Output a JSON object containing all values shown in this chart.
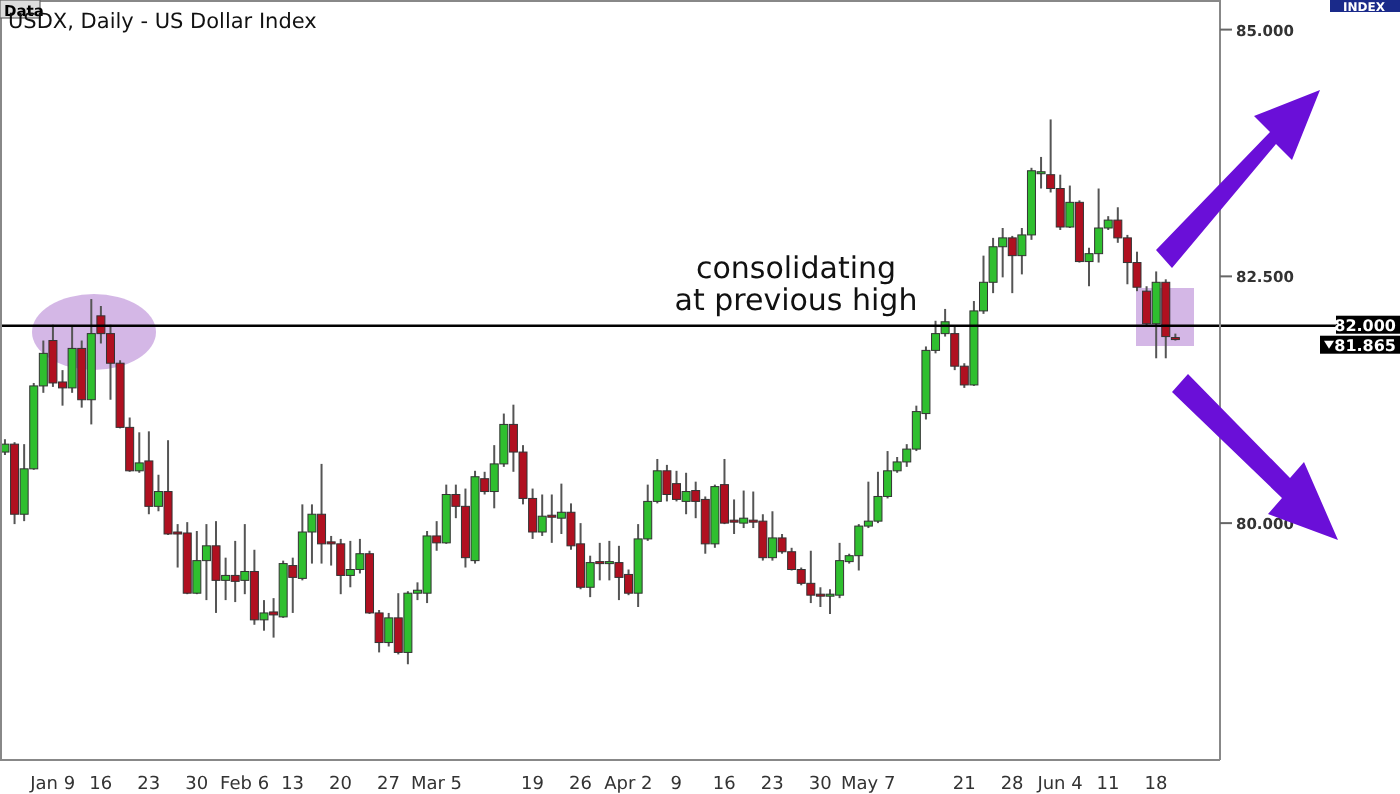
{
  "chart_data": {
    "type": "candlestick",
    "title": "USDX, Daily - US Dollar Index",
    "categories": [
      null,
      null,
      null,
      null,
      null,
      "Jan 9",
      null,
      null,
      null,
      null,
      "16",
      null,
      null,
      null,
      null,
      "23",
      null,
      null,
      null,
      null,
      "30",
      null,
      null,
      null,
      null,
      "Feb 6",
      null,
      null,
      null,
      null,
      "13",
      null,
      null,
      null,
      null,
      "20",
      null,
      null,
      null,
      null,
      "27",
      null,
      null,
      null,
      null,
      "Mar 5",
      null,
      null,
      null,
      null,
      null,
      null,
      null,
      null,
      null,
      "19",
      null,
      null,
      null,
      null,
      "26",
      null,
      null,
      null,
      null,
      "Apr 2",
      null,
      null,
      null,
      null,
      "9",
      null,
      null,
      null,
      null,
      "16",
      null,
      null,
      null,
      null,
      "23",
      null,
      null,
      null,
      null,
      "30",
      null,
      null,
      null,
      null,
      "May 7",
      null,
      null,
      null,
      null,
      null,
      null,
      null,
      null,
      null,
      "21",
      null,
      null,
      null,
      null,
      "28",
      null,
      null,
      null,
      null,
      "Jun 4",
      null,
      null,
      null,
      null,
      "11",
      null,
      null,
      null,
      null,
      "18",
      null,
      null
    ],
    "ohlc": [
      [
        80.72,
        80.85,
        80.69,
        80.8
      ],
      [
        80.8,
        80.82,
        79.99,
        80.09
      ],
      [
        80.09,
        80.8,
        80.02,
        80.55
      ],
      [
        80.55,
        81.42,
        80.54,
        81.39
      ],
      [
        81.39,
        81.85,
        81.32,
        81.72
      ],
      [
        81.85,
        82.01,
        81.38,
        81.42
      ],
      [
        81.43,
        81.55,
        81.19,
        81.37
      ],
      [
        81.37,
        81.99,
        81.32,
        81.77
      ],
      [
        81.77,
        81.85,
        81.17,
        81.25
      ],
      [
        81.25,
        82.27,
        81.0,
        81.92
      ],
      [
        82.1,
        82.2,
        81.82,
        81.92
      ],
      [
        81.92,
        82.01,
        81.25,
        81.62
      ],
      [
        81.62,
        81.65,
        80.96,
        80.97
      ],
      [
        80.97,
        81.07,
        80.52,
        80.53
      ],
      [
        80.53,
        80.92,
        80.51,
        80.61
      ],
      [
        80.63,
        80.93,
        80.09,
        80.17
      ],
      [
        80.17,
        80.49,
        80.12,
        80.32
      ],
      [
        80.32,
        80.84,
        79.88,
        79.89
      ],
      [
        79.91,
        79.99,
        79.55,
        79.89
      ],
      [
        79.9,
        80.01,
        79.28,
        79.29
      ],
      [
        79.29,
        79.92,
        79.28,
        79.62
      ],
      [
        79.62,
        79.99,
        79.22,
        79.77
      ],
      [
        79.77,
        80.02,
        79.09,
        79.42
      ],
      [
        79.42,
        79.65,
        79.22,
        79.47
      ],
      [
        79.47,
        79.82,
        79.2,
        79.41
      ],
      [
        79.42,
        79.99,
        79.28,
        79.51
      ],
      [
        79.51,
        79.73,
        78.97,
        79.02
      ],
      [
        79.02,
        79.22,
        78.91,
        79.09
      ],
      [
        79.1,
        79.24,
        78.84,
        79.07
      ],
      [
        79.05,
        79.62,
        79.04,
        79.59
      ],
      [
        79.57,
        79.65,
        79.09,
        79.45
      ],
      [
        79.44,
        80.19,
        79.42,
        79.91
      ],
      [
        79.91,
        80.19,
        79.59,
        80.09
      ],
      [
        80.09,
        80.6,
        79.59,
        79.79
      ],
      [
        79.81,
        79.87,
        79.57,
        79.79
      ],
      [
        79.79,
        79.84,
        79.28,
        79.47
      ],
      [
        79.47,
        79.82,
        79.35,
        79.53
      ],
      [
        79.53,
        79.84,
        79.49,
        79.69
      ],
      [
        79.69,
        79.72,
        79.08,
        79.09
      ],
      [
        79.09,
        79.12,
        78.69,
        78.79
      ],
      [
        78.79,
        79.09,
        78.75,
        79.04
      ],
      [
        79.04,
        79.29,
        78.67,
        78.69
      ],
      [
        78.69,
        79.31,
        78.57,
        79.29
      ],
      [
        79.29,
        79.4,
        79.22,
        79.32
      ],
      [
        79.29,
        79.92,
        79.19,
        79.87
      ],
      [
        79.87,
        80.02,
        79.72,
        79.8
      ],
      [
        79.8,
        80.39,
        79.79,
        80.29
      ],
      [
        80.29,
        80.39,
        80.05,
        80.17
      ],
      [
        80.17,
        80.35,
        79.55,
        79.65
      ],
      [
        79.62,
        80.53,
        79.59,
        80.47
      ],
      [
        80.45,
        80.52,
        80.29,
        80.32
      ],
      [
        80.32,
        80.79,
        80.15,
        80.6
      ],
      [
        80.6,
        81.11,
        80.57,
        81.0
      ],
      [
        81.0,
        81.2,
        80.52,
        80.72
      ],
      [
        80.72,
        80.79,
        80.19,
        80.25
      ],
      [
        80.25,
        80.35,
        79.84,
        79.91
      ],
      [
        79.91,
        80.29,
        79.87,
        80.07
      ],
      [
        80.08,
        80.29,
        79.8,
        80.06
      ],
      [
        80.05,
        80.4,
        79.89,
        80.11
      ],
      [
        80.11,
        80.2,
        79.73,
        79.77
      ],
      [
        79.79,
        80.0,
        79.33,
        79.35
      ],
      [
        79.35,
        79.67,
        79.25,
        79.6
      ],
      [
        79.61,
        79.8,
        79.42,
        79.59
      ],
      [
        79.59,
        79.82,
        79.42,
        79.61
      ],
      [
        79.6,
        79.77,
        79.22,
        79.45
      ],
      [
        79.48,
        79.53,
        79.27,
        79.29
      ],
      [
        79.29,
        79.99,
        79.15,
        79.84
      ],
      [
        79.84,
        80.39,
        79.82,
        80.22
      ],
      [
        80.22,
        80.65,
        80.2,
        80.53
      ],
      [
        80.53,
        80.59,
        80.22,
        80.29
      ],
      [
        80.4,
        80.53,
        80.22,
        80.24
      ],
      [
        80.22,
        80.51,
        80.09,
        80.32
      ],
      [
        80.33,
        80.42,
        80.05,
        80.22
      ],
      [
        80.24,
        80.27,
        79.69,
        79.79
      ],
      [
        79.79,
        80.39,
        79.75,
        80.37
      ],
      [
        80.39,
        80.65,
        79.99,
        80.0
      ],
      [
        80.03,
        80.24,
        79.89,
        80.01
      ],
      [
        80.0,
        80.33,
        79.95,
        80.05
      ],
      [
        80.03,
        80.32,
        79.95,
        80.01
      ],
      [
        80.02,
        80.09,
        79.62,
        79.65
      ],
      [
        79.65,
        80.12,
        79.62,
        79.85
      ],
      [
        79.85,
        79.89,
        79.69,
        79.71
      ],
      [
        79.71,
        79.75,
        79.52,
        79.53
      ],
      [
        79.53,
        79.55,
        79.37,
        79.39
      ],
      [
        79.39,
        79.72,
        79.19,
        79.27
      ],
      [
        79.28,
        79.35,
        79.15,
        79.26
      ],
      [
        79.26,
        79.33,
        79.08,
        79.28
      ],
      [
        79.27,
        79.8,
        79.24,
        79.62
      ],
      [
        79.61,
        79.69,
        79.59,
        79.67
      ],
      [
        79.67,
        79.99,
        79.52,
        79.97
      ],
      [
        79.97,
        80.42,
        79.95,
        80.02
      ],
      [
        80.02,
        80.52,
        80.0,
        80.27
      ],
      [
        80.27,
        80.73,
        80.25,
        80.53
      ],
      [
        80.53,
        80.67,
        80.51,
        80.62
      ],
      [
        80.62,
        80.8,
        80.57,
        80.75
      ],
      [
        80.75,
        81.19,
        80.73,
        81.13
      ],
      [
        81.11,
        81.79,
        81.05,
        81.75
      ],
      [
        81.75,
        82.05,
        81.72,
        81.92
      ],
      [
        81.92,
        82.17,
        81.89,
        82.04
      ],
      [
        81.92,
        81.99,
        81.55,
        81.59
      ],
      [
        81.59,
        81.62,
        81.37,
        81.4
      ],
      [
        81.4,
        82.25,
        81.39,
        82.15
      ],
      [
        82.15,
        82.71,
        82.12,
        82.44
      ],
      [
        82.44,
        82.89,
        82.33,
        82.8
      ],
      [
        82.8,
        82.99,
        82.49,
        82.89
      ],
      [
        82.89,
        82.91,
        82.33,
        82.71
      ],
      [
        82.71,
        82.99,
        82.52,
        82.92
      ],
      [
        82.92,
        83.6,
        82.87,
        83.57
      ],
      [
        83.55,
        83.71,
        83.39,
        83.56
      ],
      [
        83.53,
        84.09,
        83.35,
        83.39
      ],
      [
        83.39,
        83.53,
        82.97,
        83.0
      ],
      [
        83.0,
        83.42,
        82.99,
        83.25
      ],
      [
        83.25,
        83.27,
        82.64,
        82.65
      ],
      [
        82.65,
        82.79,
        82.4,
        82.73
      ],
      [
        82.73,
        83.39,
        82.64,
        82.99
      ],
      [
        82.99,
        83.11,
        82.97,
        83.07
      ],
      [
        83.07,
        83.2,
        82.84,
        82.89
      ],
      [
        82.89,
        82.92,
        82.42,
        82.64
      ],
      [
        82.64,
        82.75,
        82.35,
        82.39
      ],
      [
        82.35,
        82.4,
        81.99,
        82.02
      ],
      [
        82.02,
        82.55,
        81.67,
        82.44
      ],
      [
        82.44,
        82.47,
        81.67,
        81.89
      ],
      [
        81.88,
        81.92,
        81.85,
        81.865
      ]
    ],
    "colors": [
      "#2fbf2f",
      "#b01020",
      "#2fbf2f",
      "#2fbf2f",
      "#2fbf2f",
      "#b01020",
      "#b01020",
      "#2fbf2f",
      "#b01020",
      "#2fbf2f",
      "#b01020",
      "#b01020",
      "#b01020",
      "#b01020",
      "#2fbf2f",
      "#b01020",
      "#2fbf2f",
      "#b01020",
      "#b01020",
      "#b01020",
      "#2fbf2f",
      "#2fbf2f",
      "#b01020",
      "#2fbf2f",
      "#b01020",
      "#2fbf2f",
      "#b01020",
      "#2fbf2f",
      "#b01020",
      "#2fbf2f",
      "#b01020",
      "#2fbf2f",
      "#2fbf2f",
      "#b01020",
      "#b01020",
      "#b01020",
      "#2fbf2f",
      "#2fbf2f",
      "#b01020",
      "#b01020",
      "#2fbf2f",
      "#b01020",
      "#2fbf2f",
      "#2fbf2f",
      "#2fbf2f",
      "#b01020",
      "#2fbf2f",
      "#b01020",
      "#b01020",
      "#2fbf2f",
      "#b01020",
      "#2fbf2f",
      "#2fbf2f",
      "#b01020",
      "#b01020",
      "#b01020",
      "#2fbf2f",
      "#b01020",
      "#2fbf2f",
      "#b01020",
      "#b01020",
      "#2fbf2f",
      "#b01020",
      "#2fbf2f",
      "#b01020",
      "#b01020",
      "#2fbf2f",
      "#2fbf2f",
      "#2fbf2f",
      "#b01020",
      "#b01020",
      "#2fbf2f",
      "#b01020",
      "#b01020",
      "#2fbf2f",
      "#b01020",
      "#b01020",
      "#2fbf2f",
      "#b01020",
      "#b01020",
      "#2fbf2f",
      "#b01020",
      "#b01020",
      "#b01020",
      "#b01020",
      "#b01020",
      "#2fbf2f",
      "#2fbf2f",
      "#2fbf2f",
      "#2fbf2f",
      "#2fbf2f",
      "#2fbf2f",
      "#2fbf2f",
      "#2fbf2f",
      "#2fbf2f",
      "#2fbf2f",
      "#2fbf2f",
      "#2fbf2f",
      "#2fbf2f",
      "#b01020",
      "#b01020",
      "#2fbf2f",
      "#2fbf2f",
      "#2fbf2f",
      "#2fbf2f",
      "#b01020",
      "#2fbf2f",
      "#2fbf2f",
      "#2fbf2f",
      "#b01020",
      "#b01020",
      "#2fbf2f",
      "#b01020",
      "#2fbf2f",
      "#2fbf2f",
      "#2fbf2f",
      "#b01020",
      "#b01020",
      "#b01020",
      "#b01020",
      "#2fbf2f",
      "#b01020",
      "#b01020"
    ],
    "ylim": [
      77.6,
      85.3
    ],
    "yticks": [
      {
        "value": 80,
        "label": "80.000"
      },
      {
        "value": 82.5,
        "label": "82.500"
      },
      {
        "value": 85,
        "label": "85.000"
      }
    ],
    "ref_lines": [
      {
        "axis": "y",
        "value": 82,
        "label": "82.000",
        "color": "#000000"
      }
    ],
    "annotations": [
      "Data",
      "INDEX",
      "consolidating\nat previous high",
      "81.865"
    ],
    "grid": false,
    "legend": false
  }
}
